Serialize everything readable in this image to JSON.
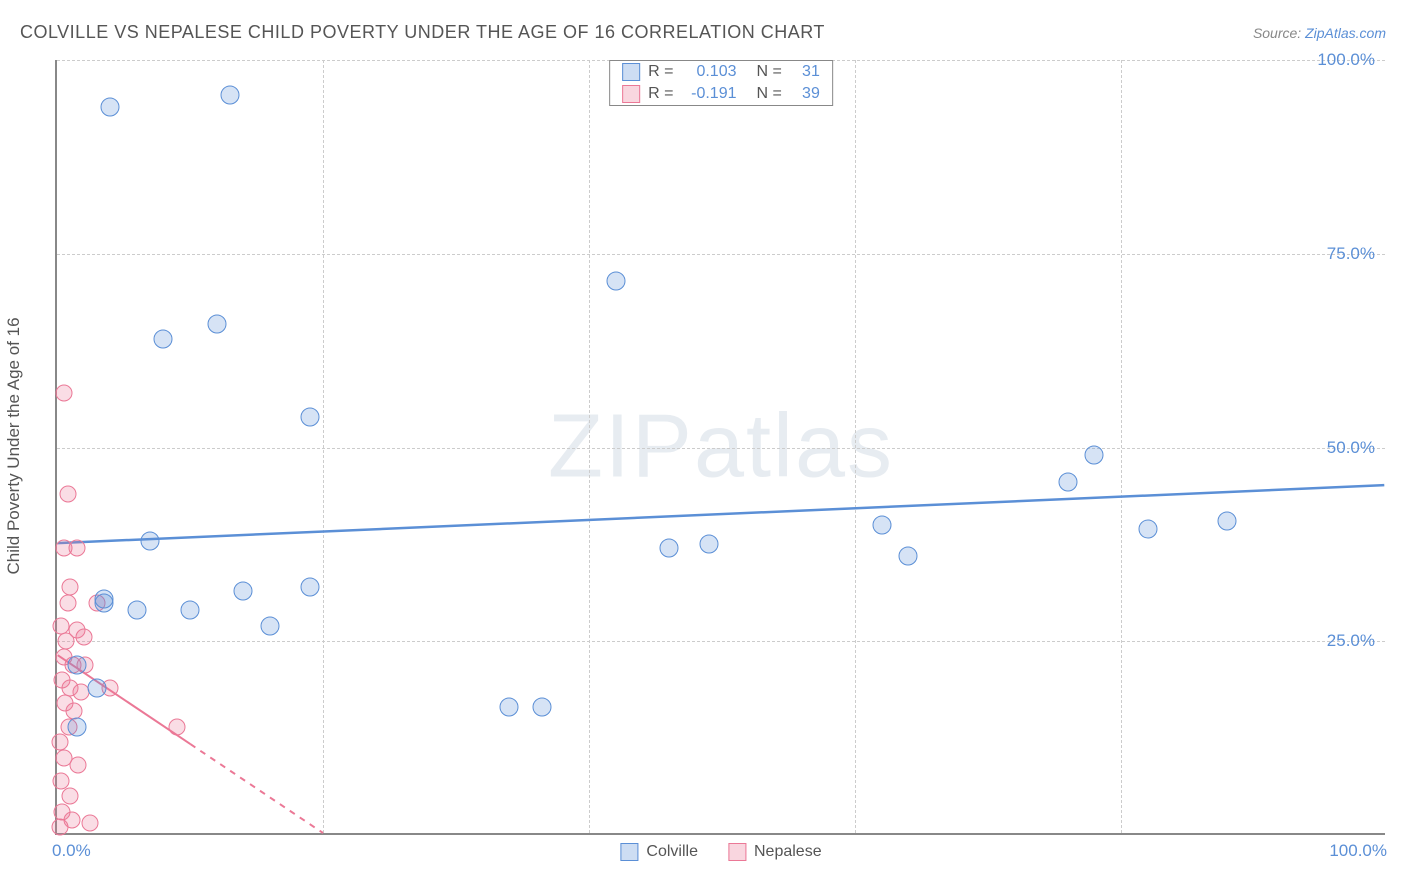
{
  "header": {
    "title": "COLVILLE VS NEPALESE CHILD POVERTY UNDER THE AGE OF 16 CORRELATION CHART",
    "source_prefix": "Source: ",
    "source_link": "ZipAtlas.com"
  },
  "chart": {
    "type": "scatter",
    "y_axis_title": "Child Poverty Under the Age of 16",
    "xlim": [
      0,
      100
    ],
    "ylim": [
      0,
      100
    ],
    "yticks": [
      25.0,
      50.0,
      75.0,
      100.0
    ],
    "ytick_labels": [
      "25.0%",
      "50.0%",
      "75.0%",
      "100.0%"
    ],
    "xticks_lines": [
      20,
      40,
      60,
      80
    ],
    "xtick_label_positions": [
      0,
      100
    ],
    "xtick_labels": [
      "0.0%",
      "100.0%"
    ],
    "grid_color": "#cccccc",
    "axis_color": "#888888",
    "background": "#ffffff",
    "watermark": "ZIPatlas",
    "series": {
      "colville": {
        "label": "Colville",
        "color": "#5b8fd6",
        "fill": "rgba(91,143,214,0.25)",
        "marker_radius": 9.5,
        "R": "0.103",
        "N": "31",
        "trend": {
          "x1": 0,
          "y1": 37.5,
          "x2": 100,
          "y2": 45.0,
          "dash_after_x": null,
          "width": 2.5
        },
        "points": [
          [
            4,
            94
          ],
          [
            13,
            95.5
          ],
          [
            3.5,
            30.5
          ],
          [
            1.5,
            22
          ],
          [
            3.5,
            30
          ],
          [
            7,
            38
          ],
          [
            6,
            29
          ],
          [
            10,
            29
          ],
          [
            3,
            19
          ],
          [
            1.5,
            14
          ],
          [
            8,
            64
          ],
          [
            12,
            66
          ],
          [
            14,
            31.5
          ],
          [
            19,
            54
          ],
          [
            19,
            32
          ],
          [
            16,
            27
          ],
          [
            34,
            16.5
          ],
          [
            36.5,
            16.5
          ],
          [
            42,
            71.5
          ],
          [
            46,
            37
          ],
          [
            49,
            37.5
          ],
          [
            62,
            40
          ],
          [
            64,
            36
          ],
          [
            76,
            45.5
          ],
          [
            78,
            49
          ],
          [
            82,
            39.5
          ],
          [
            88,
            40.5
          ]
        ]
      },
      "nepalese": {
        "label": "Nepalese",
        "color": "#eb7896",
        "fill": "rgba(235,120,150,0.25)",
        "marker_radius": 8.5,
        "R": "-0.191",
        "N": "39",
        "trend": {
          "x1": 0,
          "y1": 23,
          "x2": 20,
          "y2": 0,
          "dash_after_x": 10,
          "width": 2
        },
        "points": [
          [
            0.5,
            57
          ],
          [
            0.8,
            44
          ],
          [
            0.5,
            37
          ],
          [
            1.5,
            37
          ],
          [
            1.0,
            32
          ],
          [
            0.8,
            30
          ],
          [
            0.3,
            27
          ],
          [
            1.5,
            26.5
          ],
          [
            0.7,
            25
          ],
          [
            2.0,
            25.5
          ],
          [
            0.5,
            23
          ],
          [
            1.2,
            22
          ],
          [
            2.1,
            22
          ],
          [
            0.4,
            20
          ],
          [
            1.0,
            19
          ],
          [
            1.8,
            18.5
          ],
          [
            0.6,
            17
          ],
          [
            1.3,
            16
          ],
          [
            0.9,
            14
          ],
          [
            0.2,
            12
          ],
          [
            0.5,
            10
          ],
          [
            1.6,
            9
          ],
          [
            0.3,
            7
          ],
          [
            1.0,
            5
          ],
          [
            0.4,
            3
          ],
          [
            1.1,
            2
          ],
          [
            0.2,
            1
          ],
          [
            2.5,
            1.5
          ],
          [
            4,
            19
          ],
          [
            3,
            30
          ],
          [
            9,
            14
          ]
        ]
      }
    },
    "stats_legend": {
      "R_label": "R =",
      "N_label": "N ="
    }
  }
}
